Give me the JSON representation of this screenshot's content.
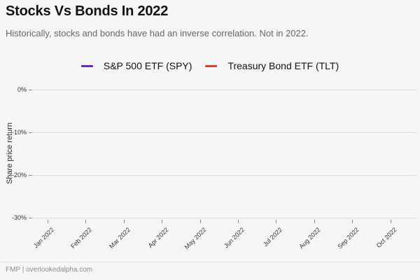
{
  "header": {
    "title": "Stocks Vs Bonds In 2022",
    "subtitle": "Historically, stocks and bonds have had an inverse correlation. Not in 2022."
  },
  "footer": {
    "text": "FMP | overlookedalpha.com"
  },
  "colors": {
    "background": "#f6f6f6",
    "gridline": "#dcdcdc",
    "spy_accent": "#5e2bd1",
    "tlt_accent": "#e83b2d"
  },
  "chart_data": {
    "type": "line",
    "title": "Stocks Vs Bonds In 2022",
    "subtitle": "Historically, stocks and bonds have had an inverse correlation. Not in 2022.",
    "xlabel": "",
    "ylabel": "Share price return",
    "x_tick_labels": [
      "Jan 2022",
      "Feb 2022",
      "Mar 2022",
      "Apr 2022",
      "May 2022",
      "Jun 2022",
      "Jul 2022",
      "Aug 2022",
      "Sep 2022",
      "Oct 2022"
    ],
    "y_tick_labels": [
      "0%",
      "-10%",
      "-20%",
      "-30%"
    ],
    "ylim": [
      -31,
      1
    ],
    "grid": true,
    "legend_position": "top-center",
    "series": [
      {
        "name": "S&P 500 ETF (SPY)",
        "color": "#5e2bd1",
        "values": []
      },
      {
        "name": "Treasury Bond ETF (TLT)",
        "color": "#e83b2d",
        "values": []
      }
    ],
    "plot_area_empty": true
  }
}
